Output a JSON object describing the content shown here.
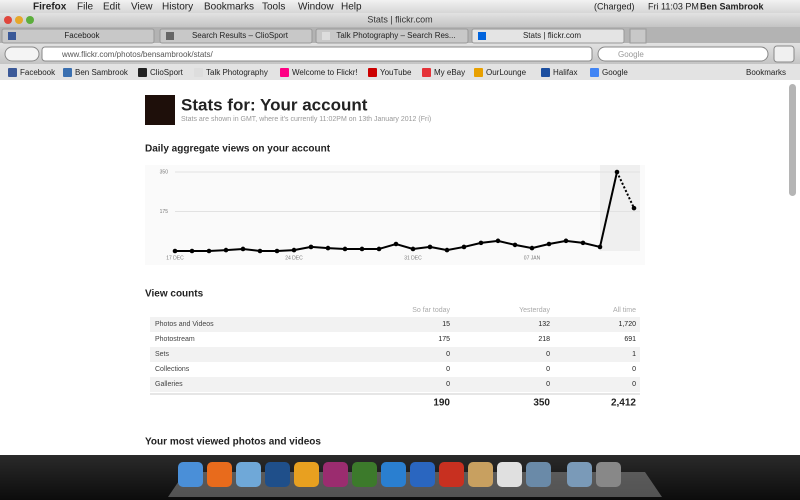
{
  "menubar": {
    "app": "Firefox",
    "items": [
      "File",
      "Edit",
      "View",
      "History",
      "Bookmarks",
      "Tools",
      "Window",
      "Help"
    ],
    "battery": "(Charged)",
    "clock": "Fri 11:03 PM",
    "user": "Ben Sambrook"
  },
  "window_title": "Stats | flickr.com",
  "tabs": [
    "Facebook",
    "Search Results – ClioSport",
    "Talk Photography – Search Res...",
    "Stats | flickr.com"
  ],
  "address": "www.flickr.com/photos/bensambrook/stats/",
  "search_placeholder": "Google",
  "bookmarks": [
    "Facebook",
    "Ben Sambrook",
    "ClioSport",
    "Talk Photography",
    "Welcome to Flickr!",
    "YouTube",
    "My eBay",
    "OurLounge",
    "Halifax",
    "Google"
  ],
  "bookmarks_menu": "Bookmarks",
  "page": {
    "title": "Stats for: Your account",
    "subtitle": "Stats are shown in GMT, where it's currently 11:02PM on 13th January 2012 (Fri)",
    "chart_heading": "Daily aggregate views on your account",
    "table_heading": "View counts",
    "table": {
      "columns": [
        "So far today",
        "Yesterday",
        "All time"
      ],
      "rows": [
        [
          "Photos and Videos",
          "15",
          "132",
          "1,720"
        ],
        [
          "Photostream",
          "175",
          "218",
          "691"
        ],
        [
          "Sets",
          "0",
          "0",
          "1"
        ],
        [
          "Collections",
          "0",
          "0",
          "0"
        ],
        [
          "Galleries",
          "0",
          "0",
          "0"
        ]
      ],
      "totals": [
        "190",
        "350",
        "2,412"
      ]
    },
    "next_heading": "Your most viewed photos and videos"
  },
  "chart_data": {
    "type": "line",
    "color": "#000000",
    "categories": [
      "17 DEC",
      null,
      null,
      null,
      null,
      null,
      null,
      "24 DEC",
      null,
      null,
      null,
      null,
      null,
      null,
      "31 DEC",
      null,
      null,
      null,
      null,
      null,
      null,
      "07 JAN",
      null,
      null,
      null,
      null,
      null,
      null
    ],
    "values": [
      0,
      0,
      0,
      4,
      9,
      0,
      0,
      4,
      18,
      13,
      9,
      9,
      9,
      31,
      9,
      18,
      4,
      18,
      36,
      45,
      27,
      13,
      31,
      45,
      36,
      18,
      350,
      190
    ],
    "ylim": [
      0,
      350
    ],
    "yticks": [
      175,
      350
    ],
    "grid": true
  }
}
